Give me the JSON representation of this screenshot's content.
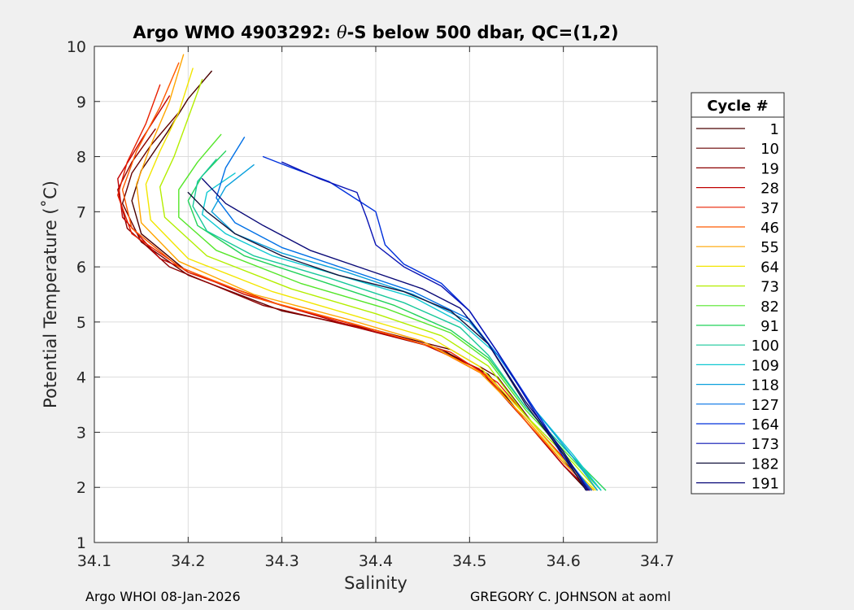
{
  "chart_data": {
    "type": "line",
    "title_prefix": "Argo WMO 4903292: ",
    "title_theta": "θ",
    "title_suffix": "-S below 500 dbar,  QC=(1,2)",
    "xlabel": "Salinity",
    "ylabel": "Potential Temperature (˚C)",
    "xlim": [
      34.1,
      34.7
    ],
    "ylim": [
      1,
      10
    ],
    "xticks": [
      34.1,
      34.2,
      34.3,
      34.4,
      34.5,
      34.6,
      34.7
    ],
    "xtick_labels": [
      "34.1",
      "34.2",
      "34.3",
      "34.4",
      "34.5",
      "34.6",
      "34.7"
    ],
    "yticks": [
      1,
      2,
      3,
      4,
      5,
      6,
      7,
      8,
      9,
      10
    ],
    "ytick_labels": [
      "1",
      "2",
      "3",
      "4",
      "5",
      "6",
      "7",
      "8",
      "9",
      "10"
    ],
    "grid": true,
    "legend_title": "Cycle #",
    "legend_position": "right-outside",
    "series": [
      {
        "name": "1",
        "color": "#4a0000",
        "points": [
          [
            34.225,
            9.55
          ],
          [
            34.2,
            9.05
          ],
          [
            34.178,
            8.45
          ],
          [
            34.15,
            7.75
          ],
          [
            34.14,
            7.2
          ],
          [
            34.15,
            6.6
          ],
          [
            34.2,
            5.9
          ],
          [
            34.3,
            5.3
          ],
          [
            34.4,
            4.85
          ],
          [
            34.47,
            4.5
          ],
          [
            34.52,
            4.05
          ],
          [
            34.56,
            3.2
          ],
          [
            34.6,
            2.4
          ],
          [
            34.625,
            1.95
          ]
        ]
      },
      {
        "name": "10",
        "color": "#660000",
        "points": [
          [
            34.19,
            8.8
          ],
          [
            34.16,
            8.2
          ],
          [
            34.14,
            7.7
          ],
          [
            34.13,
            7.15
          ],
          [
            34.15,
            6.45
          ],
          [
            34.2,
            5.85
          ],
          [
            34.3,
            5.2
          ],
          [
            34.4,
            4.85
          ],
          [
            34.48,
            4.5
          ],
          [
            34.53,
            4.0
          ],
          [
            34.57,
            3.1
          ],
          [
            34.61,
            2.3
          ],
          [
            34.628,
            1.95
          ]
        ]
      },
      {
        "name": "19",
        "color": "#8c0000",
        "points": [
          [
            34.165,
            8.5
          ],
          [
            34.14,
            7.9
          ],
          [
            34.125,
            7.4
          ],
          [
            34.135,
            6.7
          ],
          [
            34.18,
            6.0
          ],
          [
            34.28,
            5.3
          ],
          [
            34.38,
            4.9
          ],
          [
            34.46,
            4.55
          ],
          [
            34.51,
            4.15
          ],
          [
            34.56,
            3.2
          ],
          [
            34.6,
            2.4
          ],
          [
            34.627,
            1.95
          ]
        ]
      },
      {
        "name": "28",
        "color": "#c00000",
        "points": [
          [
            34.18,
            9.1
          ],
          [
            34.15,
            8.3
          ],
          [
            34.125,
            7.6
          ],
          [
            34.13,
            6.9
          ],
          [
            34.17,
            6.15
          ],
          [
            34.26,
            5.5
          ],
          [
            34.36,
            5.0
          ],
          [
            34.45,
            4.6
          ],
          [
            34.51,
            4.15
          ],
          [
            34.56,
            3.2
          ],
          [
            34.6,
            2.4
          ],
          [
            34.628,
            1.95
          ]
        ]
      },
      {
        "name": "37",
        "color": "#e82000",
        "points": [
          [
            34.17,
            9.3
          ],
          [
            34.155,
            8.6
          ],
          [
            34.135,
            7.9
          ],
          [
            34.125,
            7.3
          ],
          [
            34.14,
            6.6
          ],
          [
            34.2,
            5.9
          ],
          [
            34.3,
            5.3
          ],
          [
            34.4,
            4.85
          ],
          [
            34.48,
            4.45
          ],
          [
            34.53,
            3.9
          ],
          [
            34.57,
            3.1
          ],
          [
            34.61,
            2.35
          ],
          [
            34.63,
            1.95
          ]
        ]
      },
      {
        "name": "46",
        "color": "#ff5a00",
        "points": [
          [
            34.19,
            9.7
          ],
          [
            34.17,
            8.9
          ],
          [
            34.145,
            8.1
          ],
          [
            34.13,
            7.4
          ],
          [
            34.14,
            6.7
          ],
          [
            34.19,
            6.0
          ],
          [
            34.28,
            5.4
          ],
          [
            34.38,
            4.95
          ],
          [
            34.46,
            4.55
          ],
          [
            34.52,
            4.0
          ],
          [
            34.56,
            3.2
          ],
          [
            34.6,
            2.45
          ],
          [
            34.63,
            1.95
          ]
        ]
      },
      {
        "name": "55",
        "color": "#ffa500",
        "points": [
          [
            34.195,
            9.85
          ],
          [
            34.18,
            9.0
          ],
          [
            34.16,
            8.2
          ],
          [
            34.145,
            7.5
          ],
          [
            34.15,
            6.8
          ],
          [
            34.19,
            6.1
          ],
          [
            34.27,
            5.5
          ],
          [
            34.37,
            5.05
          ],
          [
            34.45,
            4.65
          ],
          [
            34.51,
            4.1
          ],
          [
            34.56,
            3.25
          ],
          [
            34.6,
            2.45
          ],
          [
            34.632,
            1.95
          ]
        ]
      },
      {
        "name": "64",
        "color": "#f2e600",
        "points": [
          [
            34.205,
            9.6
          ],
          [
            34.19,
            8.8
          ],
          [
            34.17,
            8.1
          ],
          [
            34.155,
            7.5
          ],
          [
            34.16,
            6.85
          ],
          [
            34.2,
            6.15
          ],
          [
            34.29,
            5.55
          ],
          [
            34.38,
            5.1
          ],
          [
            34.46,
            4.7
          ],
          [
            34.51,
            4.2
          ],
          [
            34.56,
            3.3
          ],
          [
            34.6,
            2.5
          ],
          [
            34.634,
            1.95
          ]
        ]
      },
      {
        "name": "73",
        "color": "#b4ee00",
        "points": [
          [
            34.215,
            9.4
          ],
          [
            34.2,
            8.7
          ],
          [
            34.185,
            8.0
          ],
          [
            34.17,
            7.45
          ],
          [
            34.175,
            6.9
          ],
          [
            34.22,
            6.2
          ],
          [
            34.31,
            5.6
          ],
          [
            34.4,
            5.15
          ],
          [
            34.47,
            4.75
          ],
          [
            34.52,
            4.2
          ],
          [
            34.56,
            3.3
          ],
          [
            34.61,
            2.45
          ],
          [
            34.636,
            1.95
          ]
        ]
      },
      {
        "name": "82",
        "color": "#55e62a",
        "points": [
          [
            34.235,
            8.4
          ],
          [
            34.21,
            7.9
          ],
          [
            34.19,
            7.4
          ],
          [
            34.19,
            6.9
          ],
          [
            34.23,
            6.3
          ],
          [
            34.32,
            5.7
          ],
          [
            34.41,
            5.25
          ],
          [
            34.48,
            4.8
          ],
          [
            34.52,
            4.3
          ],
          [
            34.56,
            3.4
          ],
          [
            34.61,
            2.5
          ],
          [
            34.64,
            1.95
          ]
        ]
      },
      {
        "name": "91",
        "color": "#22d25a",
        "points": [
          [
            34.24,
            8.1
          ],
          [
            34.215,
            7.65
          ],
          [
            34.2,
            7.2
          ],
          [
            34.21,
            6.75
          ],
          [
            34.26,
            6.2
          ],
          [
            34.34,
            5.75
          ],
          [
            34.42,
            5.3
          ],
          [
            34.48,
            4.85
          ],
          [
            34.52,
            4.35
          ],
          [
            34.56,
            3.45
          ],
          [
            34.61,
            2.55
          ],
          [
            34.645,
            1.95
          ]
        ]
      },
      {
        "name": "100",
        "color": "#18c89a",
        "points": [
          [
            34.23,
            7.95
          ],
          [
            34.21,
            7.55
          ],
          [
            34.205,
            7.1
          ],
          [
            34.22,
            6.65
          ],
          [
            34.27,
            6.2
          ],
          [
            34.35,
            5.8
          ],
          [
            34.43,
            5.35
          ],
          [
            34.49,
            4.9
          ],
          [
            34.52,
            4.4
          ],
          [
            34.56,
            3.45
          ],
          [
            34.61,
            2.55
          ],
          [
            34.64,
            1.95
          ]
        ]
      },
      {
        "name": "109",
        "color": "#10c8d2",
        "points": [
          [
            34.25,
            7.7
          ],
          [
            34.22,
            7.35
          ],
          [
            34.215,
            6.95
          ],
          [
            34.24,
            6.6
          ],
          [
            34.29,
            6.2
          ],
          [
            34.36,
            5.85
          ],
          [
            34.44,
            5.45
          ],
          [
            34.49,
            5.0
          ],
          [
            34.53,
            4.4
          ],
          [
            34.57,
            3.4
          ],
          [
            34.61,
            2.6
          ],
          [
            34.64,
            1.95
          ]
        ]
      },
      {
        "name": "118",
        "color": "#0aa0dc",
        "points": [
          [
            34.27,
            7.85
          ],
          [
            34.24,
            7.45
          ],
          [
            34.225,
            7.0
          ],
          [
            34.25,
            6.6
          ],
          [
            34.3,
            6.25
          ],
          [
            34.37,
            5.9
          ],
          [
            34.44,
            5.5
          ],
          [
            34.5,
            5.0
          ],
          [
            34.53,
            4.4
          ],
          [
            34.57,
            3.4
          ],
          [
            34.61,
            2.55
          ],
          [
            34.636,
            1.95
          ]
        ]
      },
      {
        "name": "127",
        "color": "#0070e6",
        "points": [
          [
            34.26,
            8.35
          ],
          [
            34.24,
            7.8
          ],
          [
            34.23,
            7.25
          ],
          [
            34.25,
            6.8
          ],
          [
            34.3,
            6.35
          ],
          [
            34.37,
            5.95
          ],
          [
            34.44,
            5.55
          ],
          [
            34.5,
            5.05
          ],
          [
            34.53,
            4.4
          ],
          [
            34.57,
            3.4
          ],
          [
            34.6,
            2.6
          ],
          [
            34.63,
            1.95
          ]
        ]
      },
      {
        "name": "164",
        "color": "#0030dc",
        "points": [
          [
            34.28,
            8.0
          ],
          [
            34.31,
            7.8
          ],
          [
            34.35,
            7.55
          ],
          [
            34.4,
            7.0
          ],
          [
            34.41,
            6.4
          ],
          [
            34.43,
            6.05
          ],
          [
            34.47,
            5.7
          ],
          [
            34.5,
            5.2
          ],
          [
            34.53,
            4.45
          ],
          [
            34.57,
            3.4
          ],
          [
            34.6,
            2.6
          ],
          [
            34.628,
            1.95
          ]
        ]
      },
      {
        "name": "173",
        "color": "#0a14b4",
        "points": [
          [
            34.3,
            7.9
          ],
          [
            34.34,
            7.6
          ],
          [
            34.38,
            7.35
          ],
          [
            34.39,
            6.9
          ],
          [
            34.4,
            6.4
          ],
          [
            34.43,
            6.0
          ],
          [
            34.47,
            5.65
          ],
          [
            34.5,
            5.2
          ],
          [
            34.53,
            4.45
          ],
          [
            34.57,
            3.35
          ],
          [
            34.6,
            2.55
          ],
          [
            34.625,
            1.95
          ]
        ]
      },
      {
        "name": "182",
        "color": "#14143c",
        "points": [
          [
            34.2,
            7.35
          ],
          [
            34.22,
            7.0
          ],
          [
            34.25,
            6.6
          ],
          [
            34.3,
            6.2
          ],
          [
            34.36,
            5.85
          ],
          [
            34.43,
            5.55
          ],
          [
            34.48,
            5.2
          ],
          [
            34.52,
            4.6
          ],
          [
            34.56,
            3.5
          ],
          [
            34.6,
            2.6
          ],
          [
            34.624,
            1.95
          ]
        ]
      },
      {
        "name": "191",
        "color": "#0a0a78",
        "points": [
          [
            34.215,
            7.6
          ],
          [
            34.24,
            7.15
          ],
          [
            34.28,
            6.75
          ],
          [
            34.33,
            6.3
          ],
          [
            34.39,
            5.95
          ],
          [
            34.45,
            5.6
          ],
          [
            34.49,
            5.25
          ],
          [
            34.52,
            4.6
          ],
          [
            34.56,
            3.55
          ],
          [
            34.6,
            2.65
          ],
          [
            34.626,
            1.95
          ]
        ]
      }
    ]
  },
  "footer": {
    "left": "Argo WHOI 08-Jan-2026",
    "right": "GREGORY C. JOHNSON at aoml"
  }
}
